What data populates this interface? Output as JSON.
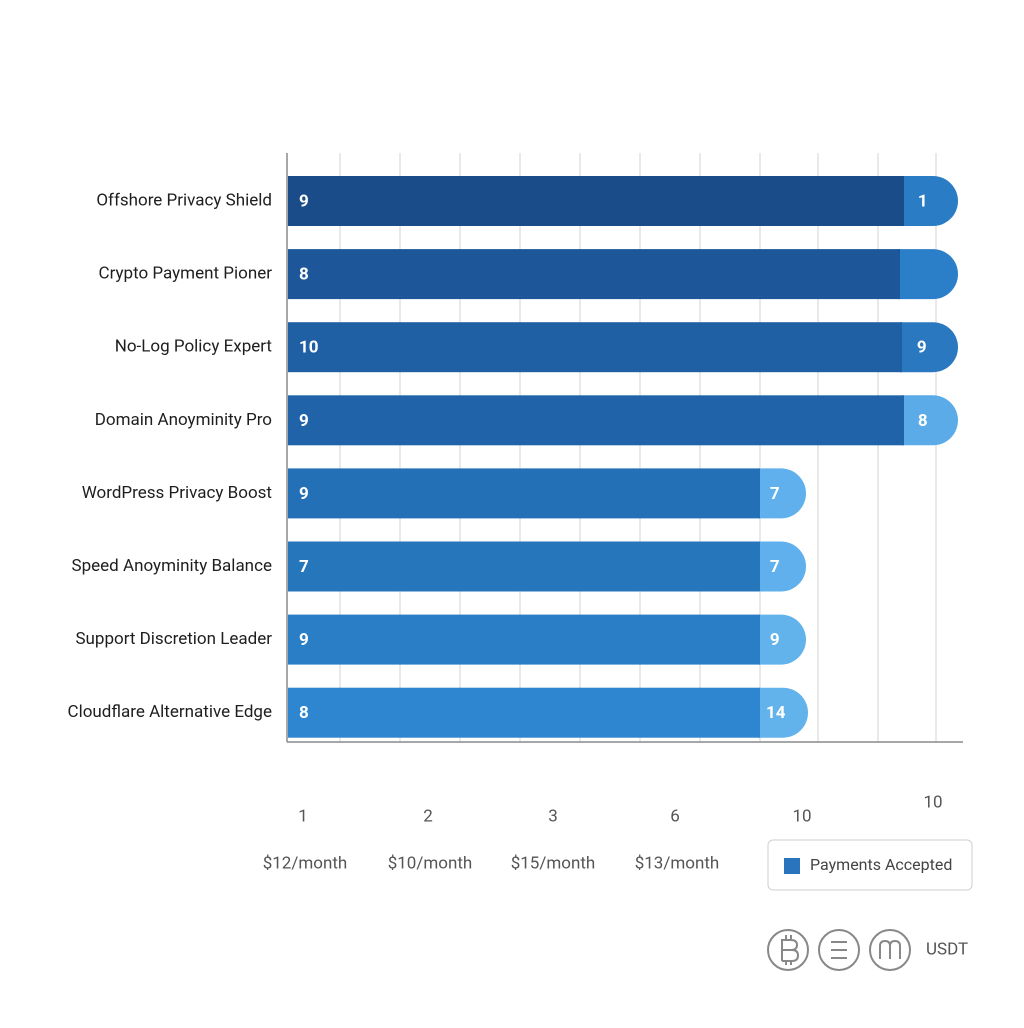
{
  "rows": [
    {
      "label": "Offshore Privacy Shield",
      "segments": [
        9,
        1
      ]
    },
    {
      "label": "Crypto Payment Pioner",
      "segments": [
        8
      ]
    },
    {
      "label": "No-Log Policy Expert",
      "segments": [
        10,
        9
      ]
    },
    {
      "label": "Domain Anoyminity Pro",
      "segments": [
        9,
        8
      ]
    },
    {
      "label": "WordPress Privacy Boost",
      "segments": [
        9,
        7
      ]
    },
    {
      "label": "Speed Anoyminity Balance",
      "segments": [
        7,
        7
      ]
    },
    {
      "label": "Support Discretion Leader",
      "segments": [
        9,
        9
      ]
    },
    {
      "label": "Cloudflare Alternative Edge",
      "segments": [
        8,
        14
      ]
    }
  ],
  "axis_numbers": [
    1,
    2,
    3,
    6,
    10,
    10
  ],
  "axis_prices": [
    "$12/month",
    "$10/month",
    "$15/month",
    "$13/month"
  ],
  "legend": "Payments Accepted",
  "currency": "USDT"
}
